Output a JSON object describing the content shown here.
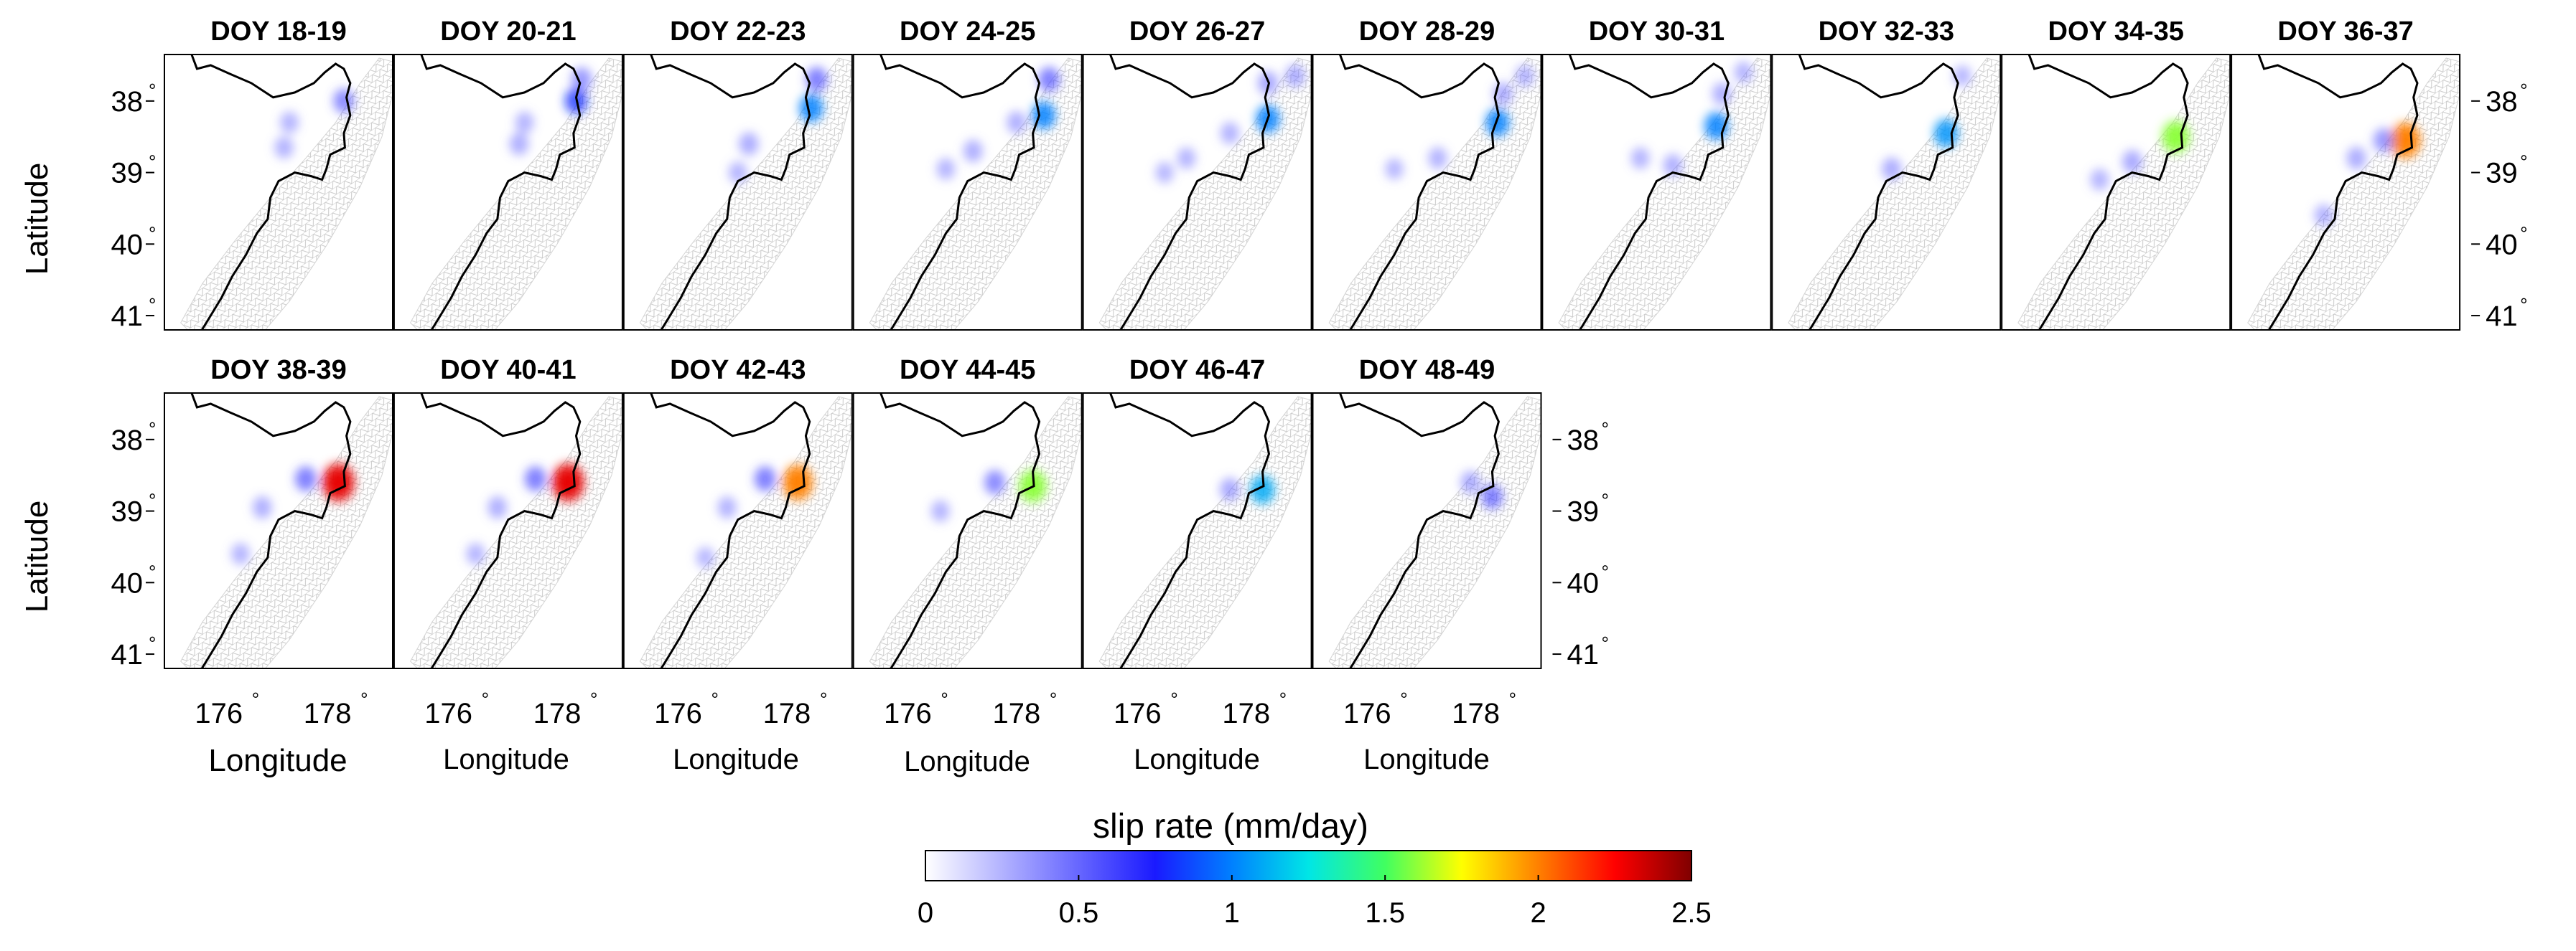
{
  "chart_data": {
    "type": "heatmap",
    "description_free": true,
    "ylabel": "Latitude",
    "xlabel": "Longitude",
    "y_ticks": [
      "38",
      "39",
      "40",
      "41"
    ],
    "y_tick_values": [
      38,
      39,
      40,
      41
    ],
    "x_ticks": [
      "176",
      "178"
    ],
    "x_tick_values": [
      176,
      178
    ],
    "degree_symbol": "°",
    "lon_range": [
      175.0,
      179.2
    ],
    "lat_range": [
      41.2,
      37.35
    ],
    "colorbar": {
      "label": "slip rate (mm/day)",
      "range": [
        0,
        2.5
      ],
      "ticks": [
        "0",
        "0.5",
        "1",
        "1.5",
        "2",
        "2.5"
      ],
      "tick_values": [
        0,
        0.5,
        1,
        1.5,
        2,
        2.5
      ]
    },
    "panels": [
      {
        "title": "DOY 18-19",
        "patches": [
          {
            "lon": 178.3,
            "lat": 38.0,
            "rate": 0.55
          },
          {
            "lon": 177.3,
            "lat": 38.3,
            "rate": 0.2
          },
          {
            "lon": 177.2,
            "lat": 38.65,
            "rate": 0.25
          }
        ]
      },
      {
        "title": "DOY 20-21",
        "patches": [
          {
            "lon": 178.35,
            "lat": 38.0,
            "rate": 0.8
          },
          {
            "lon": 178.45,
            "lat": 37.7,
            "rate": 0.5
          },
          {
            "lon": 177.3,
            "lat": 38.6,
            "rate": 0.3
          },
          {
            "lon": 177.4,
            "lat": 38.3,
            "rate": 0.2
          }
        ]
      },
      {
        "title": "DOY 22-23",
        "patches": [
          {
            "lon": 178.45,
            "lat": 38.1,
            "rate": 1.0
          },
          {
            "lon": 178.55,
            "lat": 37.7,
            "rate": 0.6
          },
          {
            "lon": 177.3,
            "lat": 38.6,
            "rate": 0.35
          },
          {
            "lon": 177.1,
            "lat": 39.0,
            "rate": 0.2
          }
        ]
      },
      {
        "title": "DOY 24-25",
        "patches": [
          {
            "lon": 178.5,
            "lat": 38.2,
            "rate": 1.0
          },
          {
            "lon": 178.6,
            "lat": 37.7,
            "rate": 0.6
          },
          {
            "lon": 178.0,
            "lat": 38.3,
            "rate": 0.3
          },
          {
            "lon": 177.2,
            "lat": 38.7,
            "rate": 0.3
          },
          {
            "lon": 176.7,
            "lat": 38.95,
            "rate": 0.2
          }
        ]
      },
      {
        "title": "DOY 26-27",
        "patches": [
          {
            "lon": 178.4,
            "lat": 38.25,
            "rate": 1.0
          },
          {
            "lon": 178.4,
            "lat": 37.75,
            "rate": 0.45
          },
          {
            "lon": 178.9,
            "lat": 37.65,
            "rate": 0.35
          },
          {
            "lon": 177.7,
            "lat": 38.45,
            "rate": 0.25
          },
          {
            "lon": 176.9,
            "lat": 38.8,
            "rate": 0.2
          },
          {
            "lon": 176.5,
            "lat": 39.0,
            "rate": 0.15
          }
        ]
      },
      {
        "title": "DOY 28-29",
        "patches": [
          {
            "lon": 178.4,
            "lat": 38.3,
            "rate": 1.0
          },
          {
            "lon": 178.5,
            "lat": 37.9,
            "rate": 0.35
          },
          {
            "lon": 178.9,
            "lat": 37.65,
            "rate": 0.25
          },
          {
            "lon": 177.3,
            "lat": 38.8,
            "rate": 0.25
          },
          {
            "lon": 176.5,
            "lat": 38.95,
            "rate": 0.15
          }
        ]
      },
      {
        "title": "DOY 30-31",
        "patches": [
          {
            "lon": 178.2,
            "lat": 38.35,
            "rate": 1.0
          },
          {
            "lon": 178.3,
            "lat": 37.9,
            "rate": 0.3
          },
          {
            "lon": 178.7,
            "lat": 37.6,
            "rate": 0.2
          },
          {
            "lon": 177.4,
            "lat": 38.9,
            "rate": 0.3
          },
          {
            "lon": 176.8,
            "lat": 38.8,
            "rate": 0.2
          }
        ]
      },
      {
        "title": "DOY 32-33",
        "patches": [
          {
            "lon": 178.2,
            "lat": 38.45,
            "rate": 1.05
          },
          {
            "lon": 177.2,
            "lat": 38.95,
            "rate": 0.35
          },
          {
            "lon": 178.5,
            "lat": 37.65,
            "rate": 0.15
          }
        ]
      },
      {
        "title": "DOY 34-35",
        "patches": [
          {
            "lon": 178.2,
            "lat": 38.5,
            "rate": 1.6
          },
          {
            "lon": 177.4,
            "lat": 38.85,
            "rate": 0.4
          },
          {
            "lon": 176.8,
            "lat": 39.1,
            "rate": 0.2
          }
        ]
      },
      {
        "title": "DOY 36-37",
        "patches": [
          {
            "lon": 178.2,
            "lat": 38.55,
            "rate": 2.0
          },
          {
            "lon": 177.8,
            "lat": 38.55,
            "rate": 0.5
          },
          {
            "lon": 177.3,
            "lat": 38.8,
            "rate": 0.35
          },
          {
            "lon": 176.7,
            "lat": 39.6,
            "rate": 0.25
          }
        ]
      },
      {
        "title": "DOY 38-39",
        "patches": [
          {
            "lon": 178.2,
            "lat": 38.6,
            "rate": 2.3
          },
          {
            "lon": 177.6,
            "lat": 38.55,
            "rate": 0.6
          },
          {
            "lon": 176.8,
            "lat": 38.95,
            "rate": 0.3
          },
          {
            "lon": 176.4,
            "lat": 39.6,
            "rate": 0.2
          }
        ]
      },
      {
        "title": "DOY 40-41",
        "patches": [
          {
            "lon": 178.2,
            "lat": 38.6,
            "rate": 2.3
          },
          {
            "lon": 177.6,
            "lat": 38.55,
            "rate": 0.6
          },
          {
            "lon": 176.9,
            "lat": 38.95,
            "rate": 0.3
          },
          {
            "lon": 176.5,
            "lat": 39.6,
            "rate": 0.2
          }
        ]
      },
      {
        "title": "DOY 42-43",
        "patches": [
          {
            "lon": 178.2,
            "lat": 38.6,
            "rate": 2.0
          },
          {
            "lon": 177.6,
            "lat": 38.55,
            "rate": 0.6
          },
          {
            "lon": 176.9,
            "lat": 38.95,
            "rate": 0.25
          },
          {
            "lon": 176.5,
            "lat": 39.65,
            "rate": 0.15
          }
        ]
      },
      {
        "title": "DOY 44-45",
        "patches": [
          {
            "lon": 178.3,
            "lat": 38.65,
            "rate": 1.6
          },
          {
            "lon": 177.6,
            "lat": 38.6,
            "rate": 0.55
          },
          {
            "lon": 176.6,
            "lat": 39.0,
            "rate": 0.2
          }
        ]
      },
      {
        "title": "DOY 46-47",
        "patches": [
          {
            "lon": 178.3,
            "lat": 38.7,
            "rate": 1.1
          },
          {
            "lon": 177.7,
            "lat": 38.7,
            "rate": 0.4
          }
        ]
      },
      {
        "title": "DOY 48-49",
        "patches": [
          {
            "lon": 178.3,
            "lat": 38.8,
            "rate": 0.6
          },
          {
            "lon": 177.9,
            "lat": 38.6,
            "rate": 0.35
          }
        ]
      }
    ]
  }
}
